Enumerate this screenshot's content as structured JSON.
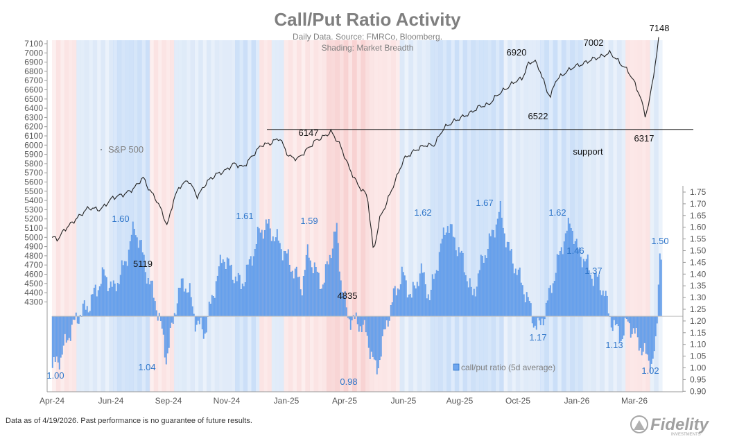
{
  "chart_data": {
    "type": "bar",
    "title": "Call/Put Ratio Activity",
    "subtitle_1": "Daily Data.  Source: FMRCo, Bloomberg.",
    "subtitle_2": "Shading: Market Breadth",
    "x_tick_labels": [
      "Apr-24",
      "Jun-24",
      "Sep-24",
      "Nov-24",
      "Jan-25",
      "Apr-25",
      "Jun-25",
      "Aug-25",
      "Oct-25",
      "Jan-26",
      "Mar-26"
    ],
    "left_axis": {
      "ylim": [
        4200,
        7150
      ],
      "ticks": [
        4300,
        4400,
        4500,
        4600,
        4700,
        4800,
        4900,
        5000,
        5100,
        5200,
        5300,
        5400,
        5500,
        5600,
        5700,
        5800,
        5900,
        6000,
        6100,
        6200,
        6300,
        6400,
        6500,
        6600,
        6700,
        6800,
        6900,
        7000,
        7100
      ]
    },
    "right_axis": {
      "ylim": [
        0.9,
        1.78
      ],
      "ticks": [
        "1.75",
        "1.70",
        "1.65",
        "1.60",
        "1.55",
        "1.50",
        "1.45",
        "1.40",
        "1.35",
        "1.30",
        "1.25",
        "1.20",
        "1.15",
        "1.10",
        "1.05",
        "1.00",
        "0.95",
        "0.90"
      ],
      "baseline": 1.22
    },
    "series": [
      {
        "name": "S&P 500",
        "type": "line",
        "axis": "left",
        "color": "#222222",
        "points": [
          [
            "Apr-24",
            5000
          ],
          [
            "May-24",
            5250
          ],
          [
            "Jun-24",
            5450
          ],
          [
            "Jul-24",
            5640
          ],
          [
            "Aug-24",
            5120
          ],
          [
            "Aug-24b",
            5580
          ],
          [
            "Sep-24",
            5600
          ],
          [
            "Oct-24",
            5800
          ],
          [
            "Nov-24",
            5990
          ],
          [
            "Dec-24",
            6080
          ],
          [
            "Dec-24b",
            5880
          ],
          [
            "Jan-25",
            6050
          ],
          [
            "Feb-25",
            6147
          ],
          [
            "Mar-25",
            5600
          ],
          [
            "Apr-25",
            4835
          ],
          [
            "May-25",
            5700
          ],
          [
            "Jun-25",
            6050
          ],
          [
            "Jul-25",
            6300
          ],
          [
            "Aug-25",
            6470
          ],
          [
            "Sep-25",
            6650
          ],
          [
            "Oct-25",
            6920
          ],
          [
            "Nov-25",
            6522
          ],
          [
            "Dec-25",
            6850
          ],
          [
            "Jan-26",
            6960
          ],
          [
            "Feb-26",
            7002
          ],
          [
            "Mar-26",
            6317
          ],
          [
            "Apr-26",
            7148
          ]
        ]
      },
      {
        "name": "call/put ratio (5d average)",
        "type": "bar",
        "axis": "right",
        "color": "#6ea6ef",
        "keypoints": [
          [
            0.0,
            1.0
          ],
          [
            0.014,
            1.05
          ],
          [
            0.028,
            1.15
          ],
          [
            0.042,
            1.22
          ],
          [
            0.06,
            1.27
          ],
          [
            0.075,
            1.35
          ],
          [
            0.085,
            1.4
          ],
          [
            0.1,
            1.33
          ],
          [
            0.12,
            1.45
          ],
          [
            0.128,
            1.54
          ],
          [
            0.135,
            1.6
          ],
          [
            0.145,
            1.52
          ],
          [
            0.155,
            1.4
          ],
          [
            0.17,
            1.28
          ],
          [
            0.18,
            1.15
          ],
          [
            0.187,
            1.04
          ],
          [
            0.195,
            1.15
          ],
          [
            0.205,
            1.3
          ],
          [
            0.215,
            1.37
          ],
          [
            0.225,
            1.32
          ],
          [
            0.235,
            1.2
          ],
          [
            0.25,
            1.15
          ],
          [
            0.265,
            1.33
          ],
          [
            0.28,
            1.48
          ],
          [
            0.295,
            1.41
          ],
          [
            0.31,
            1.35
          ],
          [
            0.325,
            1.45
          ],
          [
            0.34,
            1.58
          ],
          [
            0.352,
            1.61
          ],
          [
            0.365,
            1.56
          ],
          [
            0.38,
            1.5
          ],
          [
            0.395,
            1.42
          ],
          [
            0.41,
            1.35
          ],
          [
            0.42,
            1.5
          ],
          [
            0.43,
            1.42
          ],
          [
            0.445,
            1.35
          ],
          [
            0.455,
            1.48
          ],
          [
            0.467,
            1.59
          ],
          [
            0.475,
            1.35
          ],
          [
            0.485,
            1.22
          ],
          [
            0.495,
            1.2
          ],
          [
            0.505,
            1.19
          ],
          [
            0.515,
            1.15
          ],
          [
            0.525,
            1.05
          ],
          [
            0.532,
            0.98
          ],
          [
            0.54,
            1.08
          ],
          [
            0.55,
            1.2
          ],
          [
            0.56,
            1.3
          ],
          [
            0.575,
            1.4
          ],
          [
            0.59,
            1.3
          ],
          [
            0.605,
            1.42
          ],
          [
            0.62,
            1.3
          ],
          [
            0.635,
            1.48
          ],
          [
            0.648,
            1.62
          ],
          [
            0.66,
            1.55
          ],
          [
            0.675,
            1.45
          ],
          [
            0.69,
            1.3
          ],
          [
            0.705,
            1.45
          ],
          [
            0.72,
            1.55
          ],
          [
            0.735,
            1.67
          ],
          [
            0.75,
            1.5
          ],
          [
            0.765,
            1.4
          ],
          [
            0.78,
            1.3
          ],
          [
            0.79,
            1.2
          ],
          [
            0.8,
            1.17
          ],
          [
            0.81,
            1.25
          ],
          [
            0.825,
            1.4
          ],
          [
            0.84,
            1.55
          ],
          [
            0.852,
            1.62
          ],
          [
            0.862,
            1.5
          ],
          [
            0.875,
            1.46
          ],
          [
            0.885,
            1.4
          ],
          [
            0.897,
            1.37
          ],
          [
            0.907,
            1.32
          ],
          [
            0.915,
            1.22
          ],
          [
            0.925,
            1.17
          ],
          [
            0.935,
            1.13
          ],
          [
            0.945,
            1.2
          ],
          [
            0.955,
            1.15
          ],
          [
            0.965,
            1.1
          ],
          [
            0.975,
            1.05
          ],
          [
            0.985,
            1.02
          ],
          [
            0.992,
            1.1
          ],
          [
            0.997,
            1.5
          ],
          [
            1.0,
            1.5
          ]
        ]
      }
    ],
    "support_level": 6170,
    "annotations": [
      {
        "text": "7148",
        "series": "S&P 500"
      },
      {
        "text": "6920",
        "series": "S&P 500"
      },
      {
        "text": "7002",
        "series": "S&P 500"
      },
      {
        "text": "6522",
        "series": "S&P 500"
      },
      {
        "text": "6317",
        "series": "S&P 500"
      },
      {
        "text": "6147",
        "series": "S&P 500"
      },
      {
        "text": "5119",
        "series": "S&P 500"
      },
      {
        "text": "4835",
        "series": "S&P 500"
      },
      {
        "text": "support",
        "series": "S&P 500"
      },
      {
        "text": "1.60",
        "series": "call/put"
      },
      {
        "text": "1.61",
        "series": "call/put"
      },
      {
        "text": "1.59",
        "series": "call/put"
      },
      {
        "text": "1.62",
        "series": "call/put"
      },
      {
        "text": "1.67",
        "series": "call/put"
      },
      {
        "text": "1.62",
        "series": "call/put"
      },
      {
        "text": "1.46",
        "series": "call/put"
      },
      {
        "text": "1.37",
        "series": "call/put"
      },
      {
        "text": "1.50",
        "series": "call/put"
      },
      {
        "text": "1.00",
        "series": "call/put"
      },
      {
        "text": "1.04",
        "series": "call/put"
      },
      {
        "text": "0.98",
        "series": "call/put"
      },
      {
        "text": "1.17",
        "series": "call/put"
      },
      {
        "text": "1.13",
        "series": "call/put"
      },
      {
        "text": "1.02",
        "series": "call/put"
      }
    ],
    "shading_colors": {
      "bullish": "#cfe3fa",
      "bearish": "#f9d9d9"
    },
    "grid": false
  },
  "legend": {
    "sp500_label": "S&P 500",
    "ratio_label": "call/put ratio (5d average)"
  },
  "footer": {
    "disclaimer": "Data as of 4/19/2026. Past performance is no guarantee of future results.",
    "logo_text": "Fidelity",
    "logo_sub": "INVESTMENTS"
  }
}
